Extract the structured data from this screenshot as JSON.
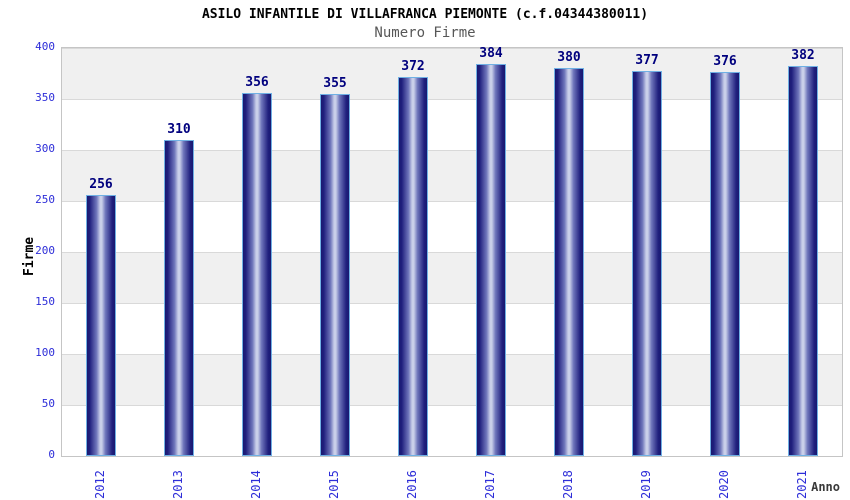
{
  "chart_data": {
    "type": "bar",
    "title": "ASILO INFANTILE DI VILLAFRANCA PIEMONTE (c.f.04344380011)",
    "subtitle": "Numero Firme",
    "xlabel": "Anno",
    "ylabel": "Firme",
    "categories": [
      "2012",
      "2013",
      "2014",
      "2015",
      "2016",
      "2017",
      "2018",
      "2019",
      "2020",
      "2021"
    ],
    "values": [
      256,
      310,
      356,
      355,
      372,
      384,
      380,
      377,
      376,
      382
    ],
    "ylim": [
      0,
      400
    ],
    "ytick_step": 50,
    "legend": "none",
    "grid": "horizontal-bands-every-50",
    "colors": {
      "bar_dark": "#191970",
      "bar_mid": "#6f76bb",
      "bar_light": "#c9cfe9",
      "bar_border": "#6fb0e4",
      "tick_label": "#2d2dd8",
      "value_label": "#00007e",
      "band_gray": "#f0f0f0",
      "band_white": "#ffffff",
      "grid_line": "#d9d9d9",
      "plot_border": "#c5c5c5",
      "title_color": "#000000",
      "subtitle_color": "#575757",
      "axis_title_color": "#3a3a3a",
      "background": "#ffffff"
    }
  }
}
